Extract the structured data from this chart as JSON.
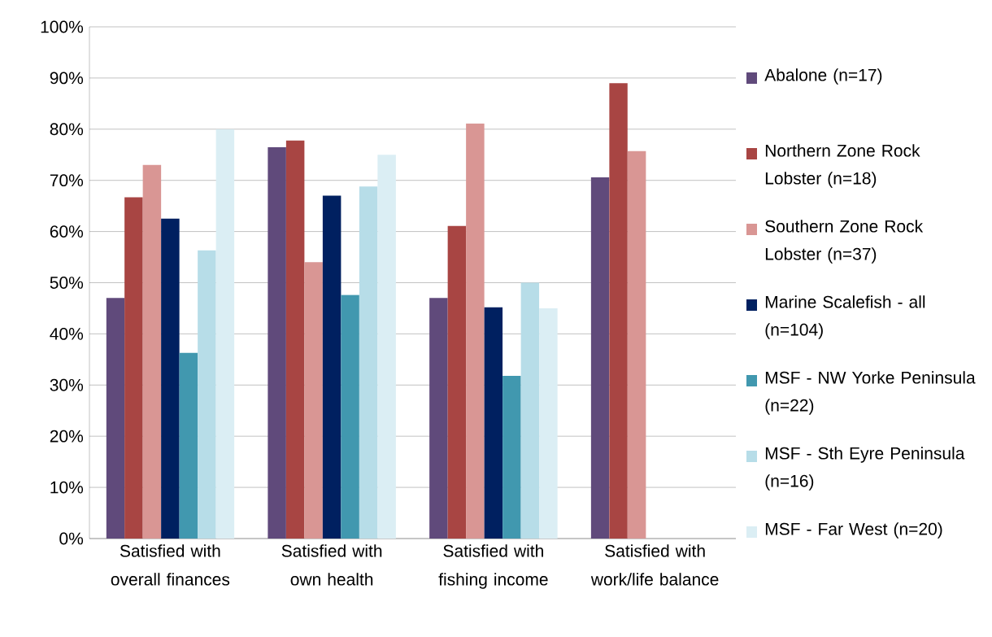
{
  "chart_data": {
    "type": "bar",
    "categories": [
      "Satisfied with overall finances",
      "Satisfied with own health",
      "Satisfied with fishing income",
      "Satisfied with work/life balance"
    ],
    "series": [
      {
        "name": "Abalone (n=17)",
        "color": "#604a7b",
        "values": [
          47.0,
          76.5,
          47.0,
          70.6
        ]
      },
      {
        "name": "Northern Zone Rock Lobster (n=18)",
        "color": "#a84543",
        "values": [
          66.7,
          77.8,
          61.1,
          89.0
        ]
      },
      {
        "name": "Southern Zone Rock Lobster (n=37)",
        "color": "#d99694",
        "values": [
          73.0,
          54.0,
          81.1,
          75.7
        ]
      },
      {
        "name": "Marine Scalefish - all (n=104)",
        "color": "#002060",
        "values": [
          62.5,
          67.0,
          45.2,
          null
        ]
      },
      {
        "name": "MSF - NW Yorke Peninsula (n=22)",
        "color": "#4198af",
        "values": [
          36.3,
          47.6,
          31.8,
          null
        ]
      },
      {
        "name": "MSF - Sth Eyre Peninsula (n=16)",
        "color": "#b7dde8",
        "values": [
          56.3,
          68.8,
          50.0,
          null
        ]
      },
      {
        "name": "MSF - Far West (n=20)",
        "color": "#dbeef4",
        "values": [
          80.0,
          75.0,
          45.0,
          null
        ]
      }
    ],
    "ylim": [
      0,
      100
    ],
    "yticks": [
      {
        "value": 0,
        "label": "0%"
      },
      {
        "value": 10,
        "label": "10%"
      },
      {
        "value": 20,
        "label": "20%"
      },
      {
        "value": 30,
        "label": "30%"
      },
      {
        "value": 40,
        "label": "40%"
      },
      {
        "value": 50,
        "label": "50%"
      },
      {
        "value": 60,
        "label": "60%"
      },
      {
        "value": 70,
        "label": "70%"
      },
      {
        "value": 80,
        "label": "80%"
      },
      {
        "value": 90,
        "label": "90%"
      },
      {
        "value": 100,
        "label": "100%"
      }
    ],
    "grid": "y",
    "legend": "right"
  }
}
